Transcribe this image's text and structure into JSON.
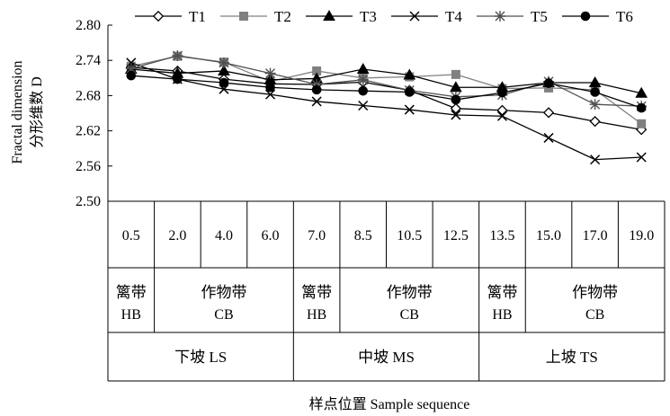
{
  "chart_data": {
    "type": "line",
    "legend_position": "top",
    "ylabel_line1": "Fractal dimension",
    "ylabel_line2": "分形维数 D",
    "xlabel": "样点位置 Sample sequence",
    "ylim": [
      2.5,
      2.8
    ],
    "yticks": [
      "2.50",
      "2.56",
      "2.62",
      "2.68",
      "2.74",
      "2.80"
    ],
    "grid": false,
    "x_labels": [
      "0.5",
      "2.0",
      "4.0",
      "6.0",
      "7.0",
      "8.5",
      "10.5",
      "12.5",
      "13.5",
      "15.0",
      "17.0",
      "19.0"
    ],
    "series": [
      {
        "name": "T1",
        "marker": "diamond-open",
        "color": "#000000",
        "values": [
          2.728,
          2.722,
          2.708,
          2.7,
          2.699,
          2.703,
          2.689,
          2.658,
          2.655,
          2.651,
          2.636,
          2.622
        ]
      },
      {
        "name": "T2",
        "marker": "square-filled",
        "color": "#808080",
        "values": [
          2.73,
          2.747,
          2.737,
          2.704,
          2.722,
          2.71,
          2.712,
          2.716,
          2.692,
          2.693,
          2.69,
          2.632
        ]
      },
      {
        "name": "T3",
        "marker": "triangle-filled",
        "color": "#000000",
        "values": [
          2.725,
          2.718,
          2.722,
          2.707,
          2.709,
          2.725,
          2.715,
          2.694,
          2.694,
          2.702,
          2.702,
          2.684
        ]
      },
      {
        "name": "T4",
        "marker": "x",
        "color": "#000000",
        "values": [
          2.736,
          2.708,
          2.691,
          2.682,
          2.67,
          2.663,
          2.656,
          2.647,
          2.645,
          2.608,
          2.571,
          2.575
        ]
      },
      {
        "name": "T5",
        "marker": "asterisk",
        "color": "#505050",
        "values": [
          2.726,
          2.748,
          2.736,
          2.718,
          2.699,
          2.707,
          2.689,
          2.678,
          2.681,
          2.704,
          2.665,
          2.662
        ]
      },
      {
        "name": "T6",
        "marker": "circle-filled",
        "color": "#000000",
        "values": [
          2.714,
          2.708,
          2.702,
          2.694,
          2.69,
          2.688,
          2.686,
          2.673,
          2.685,
          2.701,
          2.686,
          2.659
        ]
      }
    ],
    "zone_row": [
      {
        "span": [
          0,
          0
        ],
        "line1": "篱带",
        "line2": "HB"
      },
      {
        "span": [
          1,
          3
        ],
        "line1": "作物带",
        "line2": "CB"
      },
      {
        "span": [
          4,
          4
        ],
        "line1": "篱带",
        "line2": "HB"
      },
      {
        "span": [
          5,
          7
        ],
        "line1": "作物带",
        "line2": "CB"
      },
      {
        "span": [
          8,
          8
        ],
        "line1": "篱带",
        "line2": "HB"
      },
      {
        "span": [
          9,
          11
        ],
        "line1": "作物带",
        "line2": "CB"
      }
    ],
    "slope_row": [
      {
        "span": [
          0,
          3
        ],
        "label": "下坡 LS"
      },
      {
        "span": [
          4,
          7
        ],
        "label": "中坡 MS"
      },
      {
        "span": [
          8,
          11
        ],
        "label": "上坡 TS"
      }
    ]
  }
}
